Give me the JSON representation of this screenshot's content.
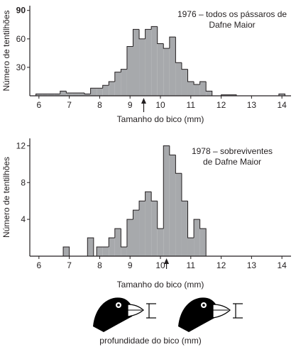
{
  "colors": {
    "bar_fill": "#a7a9ac",
    "line": "#231f20",
    "beak": "#000000"
  },
  "chart_data": [
    {
      "type": "bar",
      "title": "1976 – todos os pássaros de Dafne Maior",
      "title_lines": [
        "1976 – todos os pássaros de",
        "Dafne Maior"
      ],
      "xlabel": "Tamanho do bico (mm)",
      "ylabel": "Número de tentilhões",
      "xlim": [
        5.7,
        14.3
      ],
      "ylim": [
        0,
        95
      ],
      "xticks": [
        6,
        7,
        8,
        9,
        10,
        11,
        12,
        13,
        14
      ],
      "yticks": [
        30,
        60,
        90
      ],
      "bin_width": 0.2,
      "bins_start": [
        5.9,
        6.1,
        6.3,
        6.5,
        6.7,
        6.9,
        7.1,
        7.3,
        7.5,
        7.7,
        7.9,
        8.1,
        8.3,
        8.5,
        8.7,
        8.9,
        9.1,
        9.3,
        9.5,
        9.7,
        9.9,
        10.1,
        10.3,
        10.5,
        10.7,
        10.9,
        11.1,
        11.3,
        11.5
      ],
      "values": [
        2,
        2,
        2,
        2,
        5,
        3,
        3,
        3,
        2,
        8,
        8,
        11,
        15,
        25,
        28,
        52,
        70,
        60,
        70,
        73,
        55,
        50,
        62,
        35,
        28,
        15,
        12,
        15,
        5
      ],
      "extra_bars": [
        {
          "x": 12.0,
          "width": 0.5,
          "value": 1
        },
        {
          "x": 13.9,
          "width": 0.2,
          "value": 2
        }
      ],
      "mean_arrow_x": 9.45
    },
    {
      "type": "bar",
      "title": "1978 – sobreviventes de Dafne Maior",
      "title_lines": [
        "1978 – sobreviventes",
        "de Dafne Maior"
      ],
      "xlabel": "Tamanho do bico (mm)",
      "ylabel": "Número de tentilhões",
      "xlim": [
        5.7,
        14.3
      ],
      "ylim": [
        0,
        12.8
      ],
      "xticks": [
        6,
        7,
        8,
        9,
        10,
        11,
        12,
        13,
        14
      ],
      "yticks": [
        4,
        8,
        12
      ],
      "bin_width": 0.2,
      "bins_start": [
        6.8,
        7.6,
        7.9,
        8.1,
        8.3,
        8.5,
        8.7,
        8.9,
        9.1,
        9.3,
        9.5,
        9.7,
        9.9,
        10.1,
        10.3,
        10.5,
        10.7,
        10.9,
        11.1,
        11.3
      ],
      "values": [
        1,
        2,
        1,
        1,
        2,
        3,
        1,
        4,
        5,
        6,
        7,
        6,
        3,
        12,
        11,
        9,
        6,
        2,
        4,
        3
      ],
      "mean_arrow_x": 10.2
    }
  ],
  "beak_caption": "profundidade do bico (mm)"
}
